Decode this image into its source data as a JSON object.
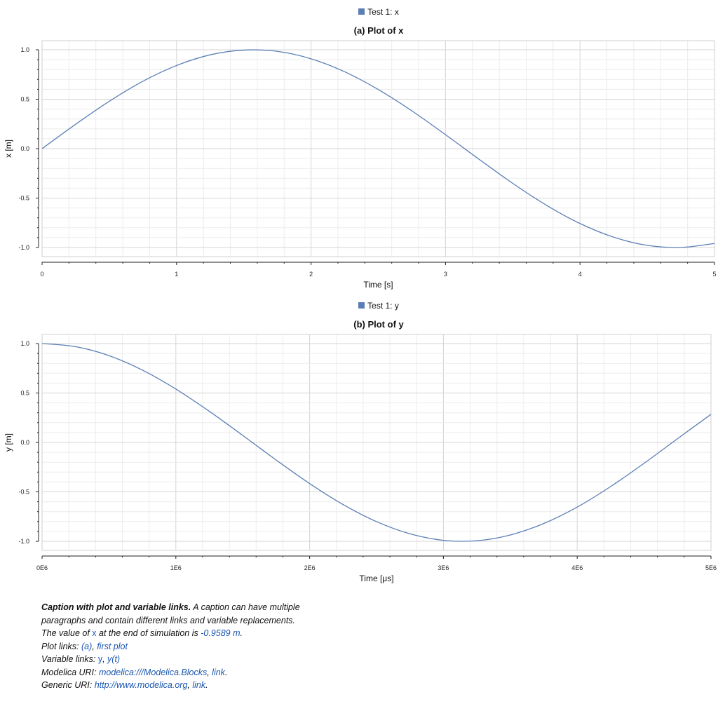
{
  "line_color": "#5b7fb5",
  "grid_major_color": "#d4d4d4",
  "grid_minor_color": "#ececec",
  "link_color": "#1a56b0",
  "chart_data": [
    {
      "type": "line",
      "legend": "Test 1: x",
      "title": "(a)  Plot of x",
      "xlabel": "Time [s]",
      "ylabel": "x [m]",
      "xlim": [
        0,
        5
      ],
      "ylim": [
        -1.0,
        1.0
      ],
      "xticks": [
        0,
        1,
        2,
        3,
        4,
        5
      ],
      "xtick_labels": [
        "0",
        "1",
        "2",
        "3",
        "4",
        "5"
      ],
      "yticks": [
        -1.0,
        -0.5,
        0.0,
        0.5,
        1.0
      ],
      "ytick_labels": [
        "-1.0",
        "-0.5",
        "0.0",
        "0.5",
        "1.0"
      ],
      "grid": true,
      "series": [
        {
          "x": [
            0,
            0.25,
            0.5,
            0.75,
            1.0,
            1.25,
            1.5,
            1.75,
            2.0,
            2.25,
            2.5,
            2.75,
            3.0,
            3.25,
            3.5,
            3.75,
            4.0,
            4.25,
            4.5,
            4.75,
            5.0
          ],
          "y": [
            0,
            0.247,
            0.479,
            0.682,
            0.841,
            0.949,
            0.997,
            0.984,
            0.909,
            0.778,
            0.598,
            0.382,
            0.141,
            -0.108,
            -0.351,
            -0.572,
            -0.757,
            -0.895,
            -0.978,
            -0.999,
            -0.959
          ]
        }
      ]
    },
    {
      "type": "line",
      "legend": "Test 1: y",
      "title": "(b)  Plot of y",
      "xlabel": "Time [μs]",
      "ylabel": "y [m]",
      "xlim": [
        0,
        5000000
      ],
      "ylim": [
        -1.0,
        1.0
      ],
      "xticks": [
        0,
        1000000,
        2000000,
        3000000,
        4000000,
        5000000
      ],
      "xtick_labels": [
        "0E6",
        "1E6",
        "2E6",
        "3E6",
        "4E6",
        "5E6"
      ],
      "yticks": [
        -1.0,
        -0.5,
        0.0,
        0.5,
        1.0
      ],
      "ytick_labels": [
        "-1.0",
        "-0.5",
        "0.0",
        "0.5",
        "1.0"
      ],
      "grid": true,
      "series": [
        {
          "x": [
            0,
            250000,
            500000,
            750000,
            1000000,
            1250000,
            1500000,
            1750000,
            2000000,
            2250000,
            2500000,
            2750000,
            3000000,
            3250000,
            3500000,
            3750000,
            4000000,
            4250000,
            4500000,
            4750000,
            5000000
          ],
          "y": [
            1.0,
            0.969,
            0.878,
            0.732,
            0.54,
            0.315,
            0.071,
            -0.178,
            -0.416,
            -0.628,
            -0.801,
            -0.924,
            -0.99,
            -0.994,
            -0.936,
            -0.82,
            -0.654,
            -0.446,
            -0.211,
            0.038,
            0.284
          ]
        }
      ]
    }
  ],
  "caption": {
    "title": "Caption with plot and variable links.",
    "intro": " A caption can have multiple paragraphs and contain different links and variable replacements.",
    "value_prefix": "The value of ",
    "value_var": "x",
    "value_mid": " at the end of simulation is ",
    "value_result": "-0.9589 m",
    "value_end": ".",
    "plot_links_label": "Plot links: ",
    "plot_link_1": "(a)",
    "plot_link_2": "first plot",
    "var_links_label": "Variable links: ",
    "var_link_1": "y",
    "var_link_2": "y(t)",
    "modelica_label": "Modelica URI: ",
    "modelica_link_1": "modelica:///Modelica.Blocks",
    "modelica_link_2": "link",
    "generic_label": "Generic URI: ",
    "generic_link_1": "http://www.modelica.org",
    "generic_link_2": "link",
    "sep": ", ",
    "dot": "."
  }
}
